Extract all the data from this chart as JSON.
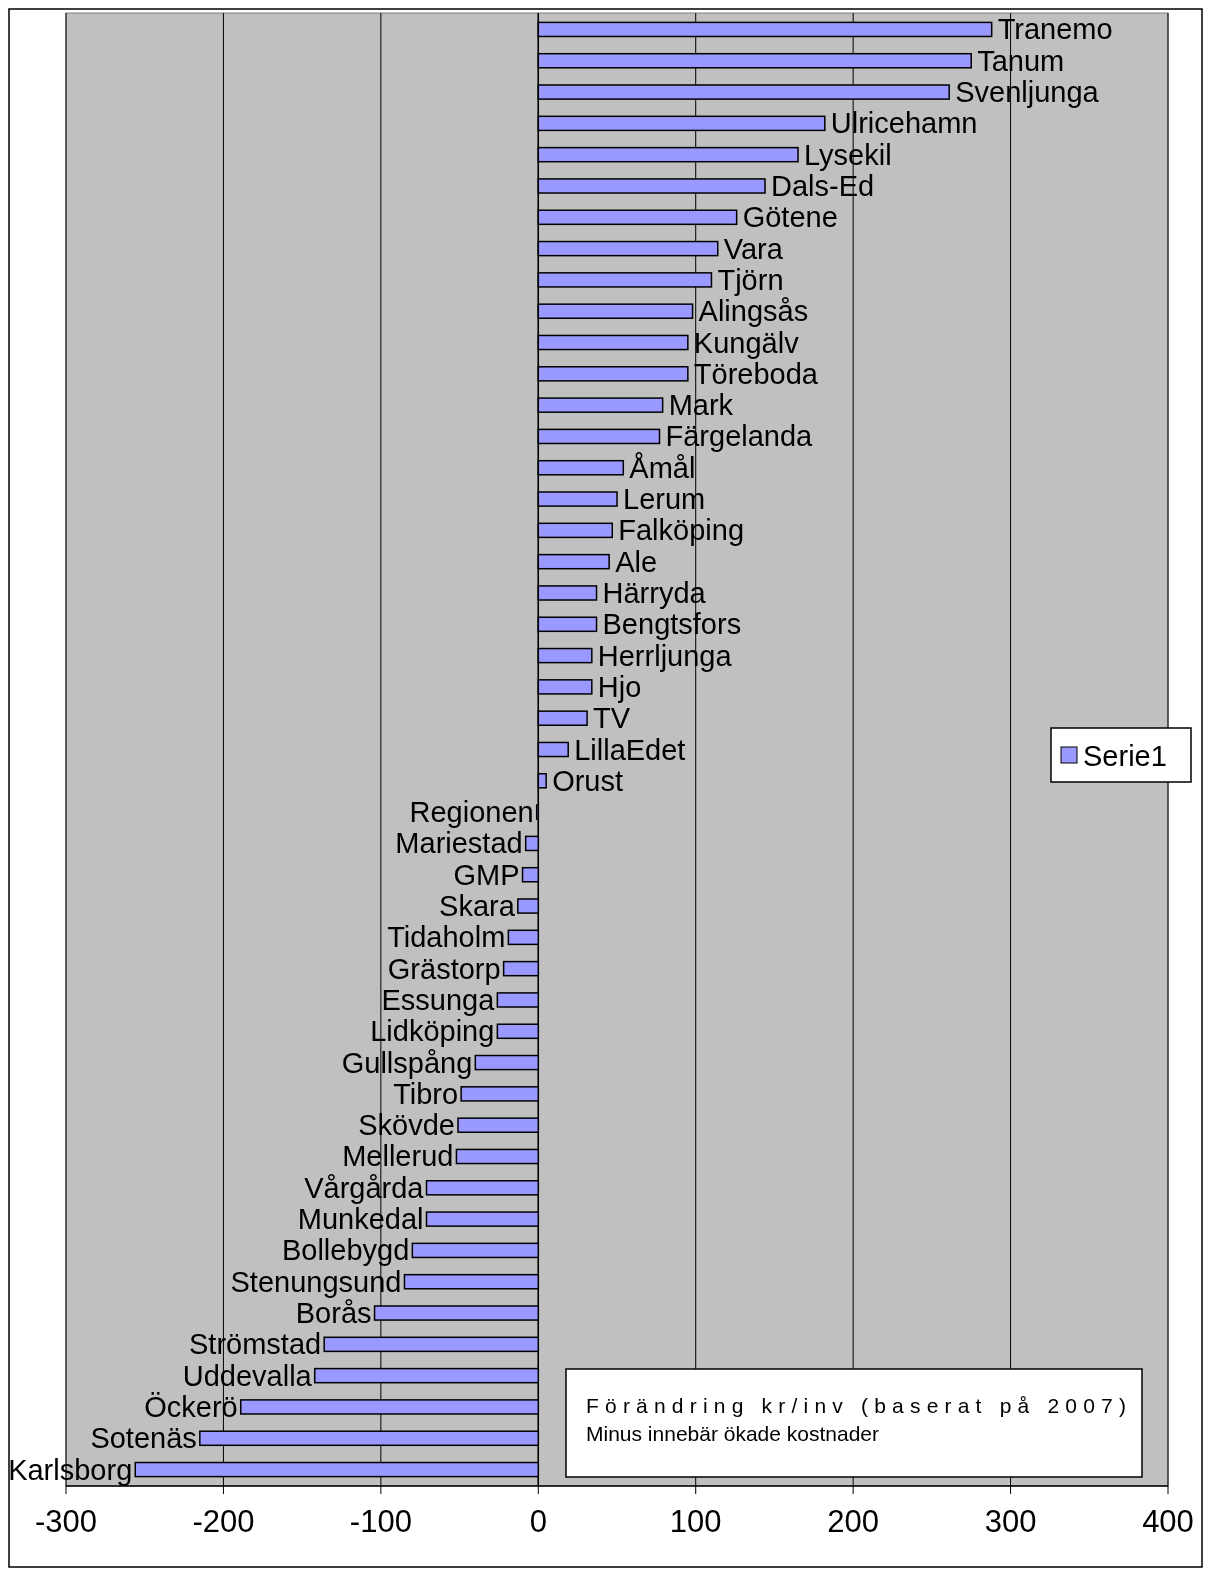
{
  "chart_data": {
    "type": "bar",
    "orientation": "horizontal",
    "data_labels": false,
    "categories": [
      "Tranemo",
      "Tanum",
      "Svenljunga",
      "Ulricehamn",
      "Lysekil",
      "Dals-Ed",
      "Götene",
      "Vara",
      "Tjörn",
      "Alingsås",
      "Kungälv",
      "Töreboda",
      "Mark",
      "Färgelanda",
      "Åmål",
      "Lerum",
      "Falköping",
      "Ale",
      "Härryda",
      "Bengtsfors",
      "Herrljunga",
      "Hjo",
      "TV",
      "LillaEdet",
      "Orust",
      "Regionen",
      "Mariestad",
      "GMP",
      "Skara",
      "Tidaholm",
      "Grästorp",
      "Essunga",
      "Lidköping",
      "Gullspång",
      "Tibro",
      "Skövde",
      "Mellerud",
      "Vårgårda",
      "Munkedal",
      "Bollebygd",
      "Stenungsund",
      "Borås",
      "Strömstad",
      "Uddevalla",
      "Öckerö",
      "Sotenäs",
      "Karlsborg"
    ],
    "series": [
      {
        "name": "Serie1",
        "color": "#9999ff",
        "values": [
          288,
          275,
          261,
          182,
          165,
          144,
          126,
          114,
          110,
          98,
          95,
          95,
          79,
          77,
          54,
          50,
          47,
          45,
          37,
          37,
          34,
          34,
          31,
          19,
          5,
          -1,
          -8,
          -10,
          -13,
          -19,
          -22,
          -26,
          -26,
          -40,
          -49,
          -51,
          -52,
          -71,
          -71,
          -80,
          -85,
          -104,
          -136,
          -142,
          -189,
          -215,
          -256
        ]
      }
    ],
    "xlim": [
      -300,
      400
    ],
    "xticks": [
      -300,
      -200,
      -100,
      0,
      100,
      200,
      300,
      400
    ],
    "grid": "x",
    "legend": "right",
    "annotations": [
      "Förändring kr/inv (baserat på 2007)",
      "Minus innebär ökade kostnader"
    ]
  }
}
